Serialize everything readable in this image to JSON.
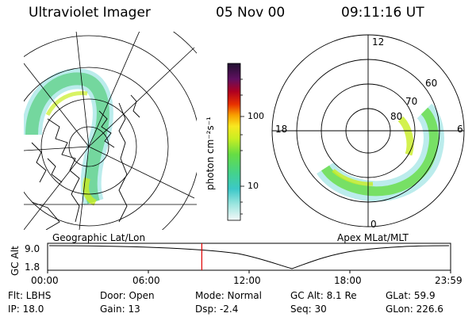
{
  "header": {
    "instrument": "Ultraviolet Imager",
    "date": "05 Nov 00",
    "time": "09:11:16 UT"
  },
  "colorbar": {
    "unit_label": "photon cm⁻²s⁻¹",
    "ticks": [
      "100",
      "10"
    ]
  },
  "left_panel": {
    "caption": "Geographic Lat/Lon"
  },
  "right_panel": {
    "caption": "Apex MLat/MLT",
    "mlt_labels": {
      "top": "12",
      "left": "18",
      "right": "6",
      "bottom": "0"
    },
    "mlat_labels": [
      "60",
      "70",
      "80"
    ]
  },
  "altitude_plot": {
    "ylabel": "GC Alt",
    "yticks": [
      "9.0",
      "1.8"
    ],
    "xticks": [
      "00:00",
      "06:00",
      "12:00",
      "18:00",
      "23:59"
    ],
    "current_time_marker": "09:11",
    "marker_color": "#e00000"
  },
  "info": {
    "filter": "Flt: LBHS",
    "ip": "IP: 18.0",
    "door": "Door: Open",
    "gain": "Gain: 13",
    "mode": "Mode: Normal",
    "dsp": "Dsp:   -2.4",
    "gc_alt": "GC Alt: 8.1 Re",
    "seq": "Seq: 30",
    "glat": "GLat:  59.9",
    "glon": "GLon: 226.6"
  }
}
